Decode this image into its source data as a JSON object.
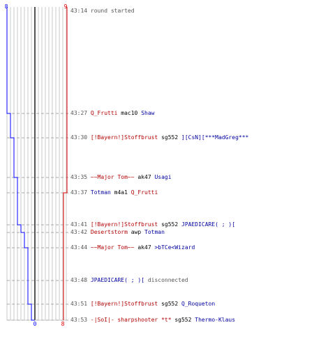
{
  "score": {
    "left_top": "8",
    "right_top": "9",
    "left_bottom": "0",
    "right_bottom": "8"
  },
  "colors": {
    "team_blue": "#0000ff",
    "team_red": "#dd0000",
    "grid": "#c8c8c8",
    "dash": "#aaaaaa"
  },
  "events": [
    {
      "time": "43:14",
      "type": "system",
      "text": "round started",
      "red": 9,
      "blue": 8
    },
    {
      "time": "43:27",
      "type": "kill",
      "killer": "Q_Frutti",
      "killer_team": "red",
      "weapon": "mac10",
      "victim": "Shaw",
      "victim_team": "blue",
      "red": 9,
      "blue": 7
    },
    {
      "time": "43:30",
      "type": "kill",
      "killer": "[!Bayern!]Stoffbrust",
      "killer_team": "red",
      "weapon": "sg552",
      "victim": "][CsN][***MadGreg***",
      "victim_team": "blue",
      "red": 9,
      "blue": 6
    },
    {
      "time": "43:35",
      "type": "kill",
      "killer": "~~Major Tom~~",
      "killer_team": "red",
      "weapon": "ak47",
      "victim": "Usagi",
      "victim_team": "blue",
      "red": 9,
      "blue": 5
    },
    {
      "time": "43:37",
      "type": "kill",
      "killer": "Totman",
      "killer_team": "blue",
      "weapon": "m4a1",
      "victim": "Q_Frutti",
      "victim_team": "red",
      "red": 8,
      "blue": 5
    },
    {
      "time": "43:41",
      "type": "kill",
      "killer": "[!Bayern!]Stoffbrust",
      "killer_team": "red",
      "weapon": "sg552",
      "victim": "JPAEDICARE( ; )[",
      "victim_team": "blue",
      "red": 8,
      "blue": 4
    },
    {
      "time": "43:42",
      "type": "kill",
      "killer": "Desertstorm",
      "killer_team": "red",
      "weapon": "awp",
      "victim": "Totman",
      "victim_team": "blue",
      "red": 8,
      "blue": 3
    },
    {
      "time": "43:44",
      "type": "kill",
      "killer": "~~Major Tom~~",
      "killer_team": "red",
      "weapon": "ak47",
      "victim": ">bTCe<Wizard",
      "victim_team": "blue",
      "red": 8,
      "blue": 2
    },
    {
      "time": "43:48",
      "type": "disconnect",
      "player": "JPAEDICARE( ; )[",
      "player_team": "blue",
      "text": "disconnected",
      "red": 8,
      "blue": 2
    },
    {
      "time": "43:51",
      "type": "kill",
      "killer": "[!Bayern!]Stoffbrust",
      "killer_team": "red",
      "weapon": "sg552",
      "victim": "Q_Roqueton",
      "victim_team": "blue",
      "red": 8,
      "blue": 1
    },
    {
      "time": "43:53",
      "type": "kill",
      "killer": "-|SoI|- sharpshooter *t*",
      "killer_team": "red",
      "weapon": "sg552",
      "victim": "Thermo-Klaus",
      "victim_team": "blue",
      "red": 8,
      "blue": 0
    }
  ]
}
